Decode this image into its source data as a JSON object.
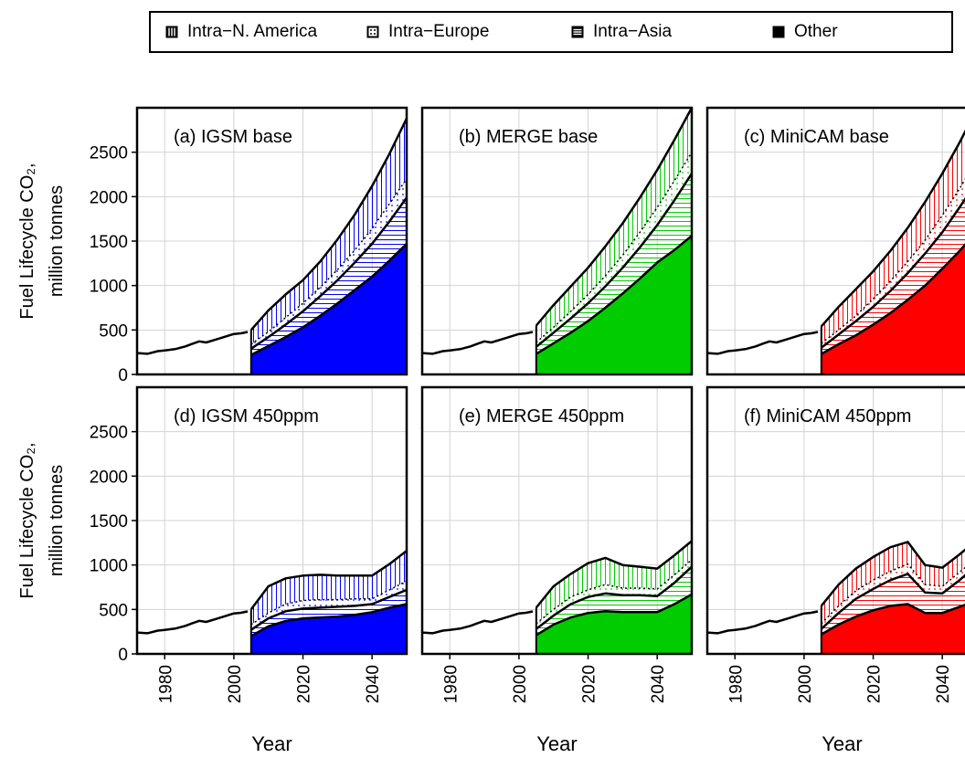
{
  "legend": {
    "items": [
      {
        "label": "Intra−N. America",
        "pattern": "vertical"
      },
      {
        "label": "Intra−Europe",
        "pattern": "dotted"
      },
      {
        "label": "Intra−Asia",
        "pattern": "horizontal"
      },
      {
        "label": "Other",
        "pattern": "solid"
      }
    ]
  },
  "chart_data": {
    "type": "area",
    "ylabel_line1": "Fuel Lifecycle CO₂,",
    "ylabel_line2": "million tonnes",
    "xlabel": "Year",
    "xlim": [
      1972,
      2050
    ],
    "ylim": [
      0,
      3000
    ],
    "xticks": [
      "1980",
      "2000",
      "2020",
      "2040"
    ],
    "yticks": [
      "0",
      "500",
      "1000",
      "1500",
      "2000",
      "2500"
    ],
    "grid": true,
    "historical": {
      "x": [
        1972,
        1975,
        1978,
        1980,
        1983,
        1986,
        1988,
        1990,
        1992,
        1995,
        1998,
        2000,
        2002,
        2004
      ],
      "y": [
        240,
        232,
        262,
        270,
        285,
        315,
        345,
        372,
        360,
        395,
        430,
        455,
        462,
        478
      ]
    },
    "projection_x": [
      2005,
      2010,
      2015,
      2020,
      2025,
      2030,
      2035,
      2040,
      2045,
      2050
    ],
    "panels": [
      {
        "title": "(a) IGSM base",
        "color": "#0000ff",
        "other": [
          220,
          320,
          420,
          530,
          660,
          800,
          950,
          1100,
          1280,
          1470
        ],
        "asia": [
          290,
          420,
          560,
          710,
          880,
          1060,
          1260,
          1470,
          1720,
          1990
        ],
        "europe": [
          340,
          480,
          640,
          800,
          980,
          1180,
          1400,
          1640,
          1920,
          2200
        ],
        "namerica": [
          500,
          720,
          900,
          1060,
          1270,
          1520,
          1800,
          2120,
          2480,
          2880
        ]
      },
      {
        "title": "(b) MERGE base",
        "color": "#00cc00",
        "other": [
          230,
          350,
          470,
          600,
          750,
          910,
          1080,
          1260,
          1400,
          1560
        ],
        "asia": [
          310,
          470,
          630,
          800,
          990,
          1200,
          1430,
          1680,
          1960,
          2260
        ],
        "europe": [
          360,
          530,
          710,
          900,
          1110,
          1340,
          1600,
          1880,
          2180,
          2500
        ],
        "namerica": [
          550,
          780,
          990,
          1200,
          1440,
          1700,
          1990,
          2300,
          2640,
          3000
        ]
      },
      {
        "title": "(c) MiniCAM base",
        "color": "#ff0000",
        "other": [
          230,
          340,
          440,
          560,
          690,
          840,
          1000,
          1190,
          1390,
          1610
        ],
        "asia": [
          300,
          450,
          600,
          760,
          940,
          1140,
          1360,
          1600,
          1880,
          2170
        ],
        "europe": [
          350,
          500,
          660,
          850,
          1050,
          1270,
          1510,
          1790,
          2090,
          2420
        ],
        "namerica": [
          540,
          760,
          960,
          1160,
          1390,
          1650,
          1940,
          2260,
          2610,
          2990
        ]
      },
      {
        "title": "(d) IGSM 450ppm",
        "color": "#0000ff",
        "other": [
          200,
          310,
          370,
          400,
          410,
          420,
          440,
          470,
          520,
          560
        ],
        "asia": [
          270,
          400,
          480,
          510,
          520,
          530,
          540,
          560,
          640,
          720
        ],
        "europe": [
          330,
          460,
          560,
          600,
          610,
          610,
          620,
          620,
          720,
          820
        ],
        "namerica": [
          500,
          760,
          850,
          880,
          890,
          880,
          880,
          880,
          1010,
          1160
        ]
      },
      {
        "title": "(e) MERGE 450ppm",
        "color": "#00cc00",
        "other": [
          210,
          330,
          410,
          460,
          480,
          470,
          470,
          470,
          560,
          670
        ],
        "asia": [
          280,
          430,
          560,
          640,
          680,
          660,
          660,
          650,
          800,
          980
        ],
        "europe": [
          340,
          500,
          640,
          720,
          780,
          740,
          740,
          730,
          890,
          1060
        ],
        "namerica": [
          520,
          760,
          900,
          1020,
          1080,
          1000,
          980,
          960,
          1110,
          1270
        ]
      },
      {
        "title": "(f) MiniCAM 450ppm",
        "color": "#ff0000",
        "other": [
          220,
          330,
          420,
          490,
          540,
          560,
          460,
          460,
          530,
          600
        ],
        "asia": [
          280,
          460,
          620,
          730,
          830,
          900,
          690,
          680,
          830,
          1000
        ],
        "europe": [
          340,
          540,
          710,
          830,
          930,
          1010,
          780,
          760,
          920,
          1080
        ],
        "namerica": [
          540,
          780,
          960,
          1090,
          1200,
          1260,
          1000,
          970,
          1120,
          1280
        ]
      }
    ]
  }
}
